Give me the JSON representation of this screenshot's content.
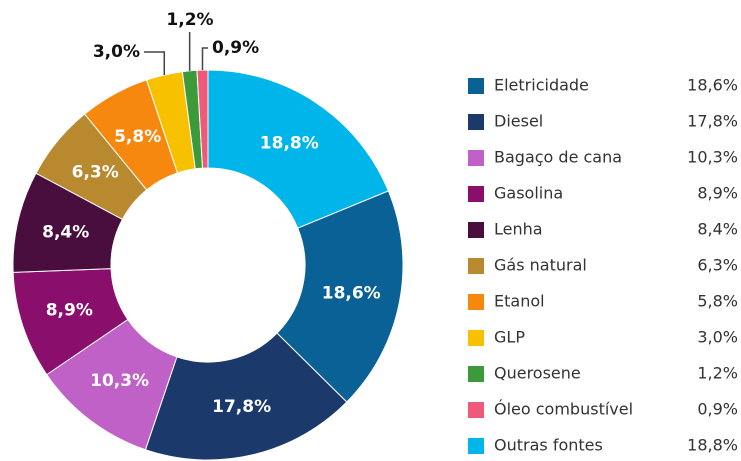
{
  "chart_data": {
    "type": "donut",
    "categories": [
      "Eletricidade",
      "Diesel",
      "Bagaço de cana",
      "Gasolina",
      "Lenha",
      "Gás natural",
      "Etanol",
      "GLP",
      "Querosene",
      "Óleo combustível",
      "Outras fontes"
    ],
    "values": [
      18.6,
      17.8,
      10.3,
      8.9,
      8.4,
      6.3,
      5.8,
      3.0,
      1.2,
      0.9,
      18.8
    ],
    "value_labels": [
      "18,6%",
      "17,8%",
      "10,3%",
      "8,9%",
      "8,4%",
      "6,3%",
      "5,8%",
      "3,0%",
      "1,2%",
      "0,9%",
      "18,8%"
    ],
    "colors": [
      "#0a6196",
      "#1b3a6b",
      "#c061c8",
      "#8a0f6d",
      "#4a0e3e",
      "#b8892f",
      "#f7880f",
      "#f8c100",
      "#3d9a3a",
      "#ef5a7a",
      "#00b5ea"
    ],
    "legend": "right"
  }
}
